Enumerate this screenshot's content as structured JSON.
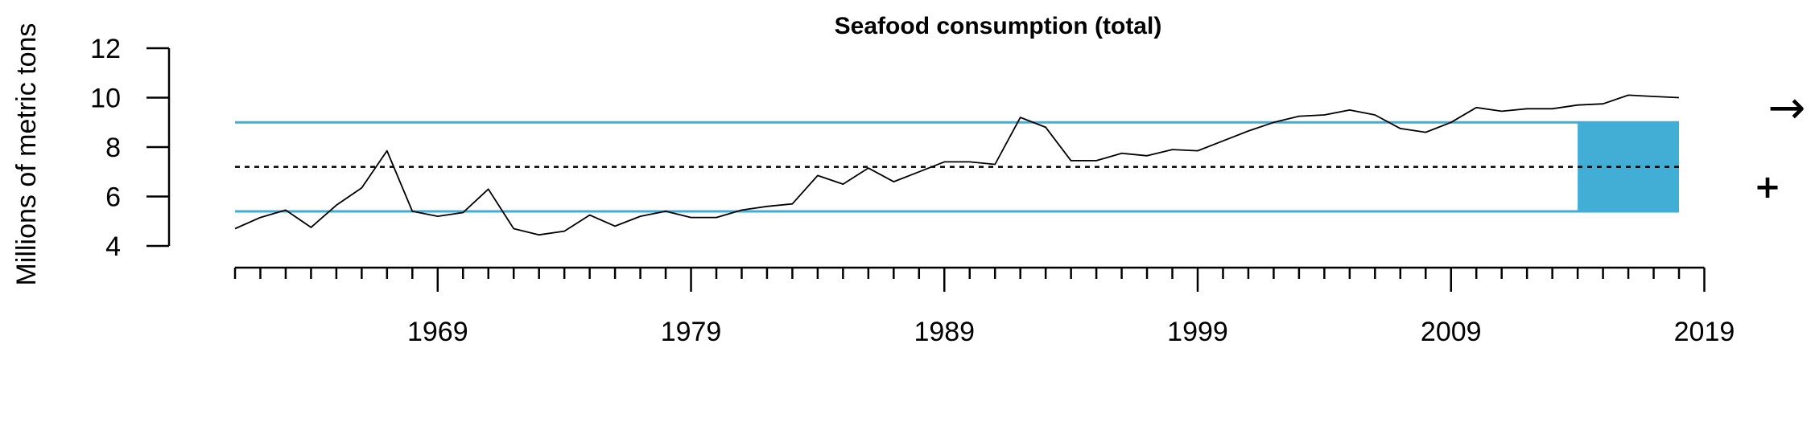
{
  "chart_data": {
    "type": "line",
    "title": "Seafood consumption (total)",
    "xlabel": "",
    "ylabel": "Millions of metric tons",
    "xlim": [
      1961,
      2018
    ],
    "ylim": [
      4,
      12
    ],
    "yticks": [
      4,
      6,
      8,
      10,
      12
    ],
    "xtick_labels": [
      "1969",
      "1979",
      "1989",
      "1999",
      "2009",
      "2019"
    ],
    "grid": false,
    "series": [
      {
        "x": [
          1961,
          1962,
          1963,
          1964,
          1965,
          1966,
          1967,
          1968,
          1969,
          1970,
          1971,
          1972,
          1973,
          1974,
          1975,
          1976,
          1977,
          1978,
          1979,
          1980,
          1981,
          1982,
          1983,
          1984,
          1985,
          1986,
          1987,
          1988,
          1989,
          1990,
          1991,
          1992,
          1993,
          1994,
          1995,
          1996,
          1997,
          1998,
          1999,
          2000,
          2001,
          2002,
          2003,
          2004,
          2005,
          2006,
          2007,
          2008,
          2009,
          2010,
          2011,
          2012,
          2013,
          2014,
          2015,
          2016,
          2017,
          2018
        ],
        "y": [
          4.7,
          5.15,
          5.45,
          4.75,
          5.65,
          6.35,
          7.85,
          5.4,
          5.2,
          5.35,
          6.3,
          4.7,
          4.45,
          4.6,
          5.25,
          4.8,
          5.2,
          5.4,
          5.15,
          5.15,
          5.45,
          5.6,
          5.7,
          6.85,
          6.5,
          7.15,
          6.6,
          7.0,
          7.4,
          7.4,
          7.3,
          9.2,
          8.8,
          7.45,
          7.45,
          7.75,
          7.65,
          7.9,
          7.85,
          8.25,
          8.65,
          9.0,
          9.25,
          9.3,
          9.5,
          9.3,
          8.75,
          8.6,
          9.0,
          9.6,
          9.45,
          9.55,
          9.55,
          9.7,
          9.75,
          10.1,
          10.05,
          10.0
        ]
      }
    ],
    "reference_lines": {
      "mean": 7.2,
      "upper_sd": 9.0,
      "lower_sd": 5.4
    },
    "highlight_period": {
      "x_start": 2014,
      "x_end": 2018
    },
    "trend_symbols": {
      "trend": "→",
      "mean_status": "+"
    },
    "colors": {
      "series": "#000000",
      "band_lines": "#3fadd6",
      "highlight_fill": "#42aed6",
      "mean_line": "#000000"
    }
  }
}
